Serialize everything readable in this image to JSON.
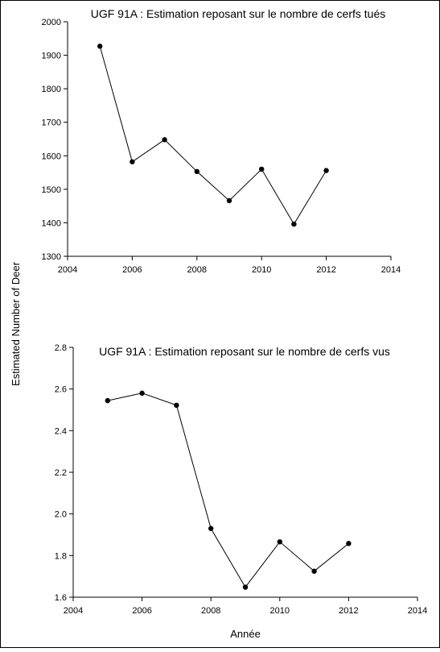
{
  "figure": {
    "shared_ylabel": "Estimated Number of Deer",
    "shared_xlabel": "Année"
  },
  "chart_data": [
    {
      "type": "line",
      "title": "UGF 91A : Estimation reposant sur le nombre de cerfs tués",
      "xlabel": "",
      "ylabel": "",
      "xlim": [
        2004,
        2014
      ],
      "ylim": [
        1300,
        2000
      ],
      "xticks": [
        2004,
        2006,
        2008,
        2010,
        2012,
        2014
      ],
      "yticks": [
        1300,
        1400,
        1500,
        1600,
        1700,
        1800,
        1900,
        2000
      ],
      "grid": false,
      "series": [
        {
          "x": [
            2005,
            2006,
            2007,
            2008,
            2009,
            2010,
            2011,
            2012
          ],
          "values": [
            1927,
            1582,
            1648,
            1553,
            1466,
            1560,
            1396,
            1556
          ]
        }
      ]
    },
    {
      "type": "line",
      "title": "UGF 91A : Estimation reposant sur le nombre de cerfs vus",
      "xlabel": "",
      "ylabel": "",
      "xlim": [
        2004,
        2014
      ],
      "ylim": [
        1.6,
        2.8
      ],
      "xticks": [
        2004,
        2006,
        2008,
        2010,
        2012,
        2014
      ],
      "yticks": [
        1.6,
        1.8,
        2.0,
        2.2,
        2.4,
        2.6,
        2.8
      ],
      "ytick_labels": [
        "1.6",
        "1.8",
        "2.0",
        "2.2",
        "2.4",
        "2.6",
        "2.8"
      ],
      "grid": false,
      "series": [
        {
          "x": [
            2005,
            2006,
            2007,
            2008,
            2009,
            2010,
            2011,
            2012
          ],
          "values": [
            2.544,
            2.58,
            2.522,
            1.93,
            1.648,
            1.866,
            1.725,
            1.858
          ]
        }
      ]
    }
  ]
}
